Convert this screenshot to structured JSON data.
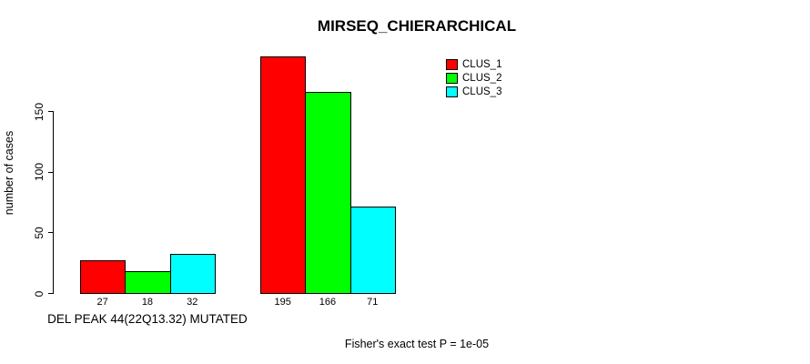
{
  "page": {
    "background": "#ffffff"
  },
  "chart_data": {
    "type": "bar",
    "title": "MIRSEQ_CHIERARCHICAL",
    "ylabel": "number of cases",
    "xlabel": "",
    "yticks": [
      0,
      50,
      100,
      150
    ],
    "ylim": [
      0,
      200
    ],
    "grid": false,
    "legend_position": "top-right",
    "categories": [
      "DEL PEAK 44(22Q13.32) MUTATED",
      ""
    ],
    "series": [
      {
        "name": "CLUS_1",
        "color": "#ff0000",
        "values": [
          27,
          195
        ]
      },
      {
        "name": "CLUS_2",
        "color": "#00ff00",
        "values": [
          18,
          166
        ]
      },
      {
        "name": "CLUS_3",
        "color": "#00ffff",
        "values": [
          32,
          71
        ]
      }
    ],
    "bar_value_labels": [
      [
        "27",
        "18",
        "32"
      ],
      [
        "195",
        "166",
        "71"
      ]
    ],
    "annotation": "Fisher's exact test P = 1e-05"
  }
}
